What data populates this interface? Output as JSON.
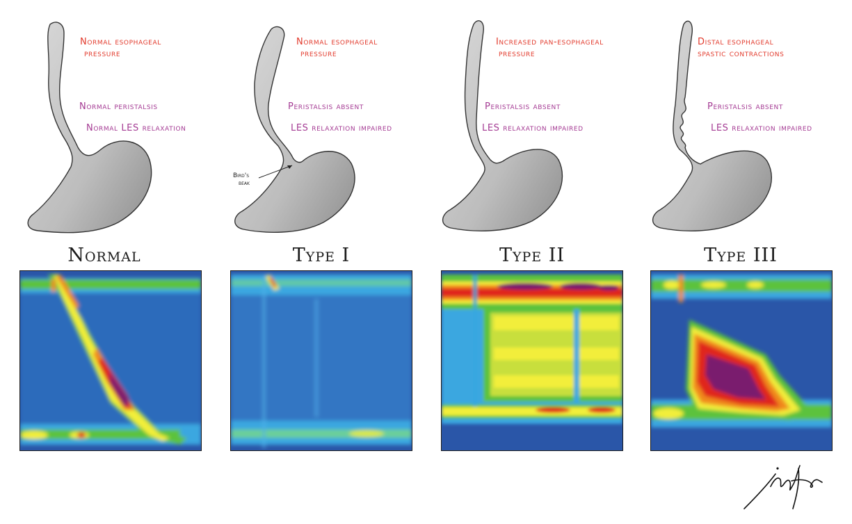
{
  "panels": [
    {
      "title": "Normal",
      "pressure_label": [
        "Normal esophageal",
        "pressure"
      ],
      "peristalsis_label": "Normal peristalsis",
      "les_label": "Normal LES relaxation",
      "colors": {
        "pressure": "#e23a2c",
        "motility": "#a43a93"
      }
    },
    {
      "title": "Type I",
      "pressure_label": [
        "Normal esophageal",
        "pressure"
      ],
      "peristalsis_label": "Peristalsis absent",
      "les_label": "LES relaxation impaired",
      "annotation": [
        "Bird's",
        "beak"
      ]
    },
    {
      "title": "Type II",
      "pressure_label": [
        "Increased pan-esophageal",
        "pressure"
      ],
      "peristalsis_label": "Peristalsis absent",
      "les_label": "LES relaxation impaired"
    },
    {
      "title": "Type III",
      "pressure_label": [
        "Distal esophageal",
        "spastic contractions"
      ],
      "peristalsis_label": "Peristalsis absent",
      "les_label": "LES relaxation impaired"
    }
  ],
  "pressure_colormap": [
    "#2a56a8",
    "#3aa7e0",
    "#5cc23c",
    "#f2ee3a",
    "#f08a1e",
    "#e0281e",
    "#7a1a6e"
  ],
  "signature": "artist signature (handwritten)"
}
